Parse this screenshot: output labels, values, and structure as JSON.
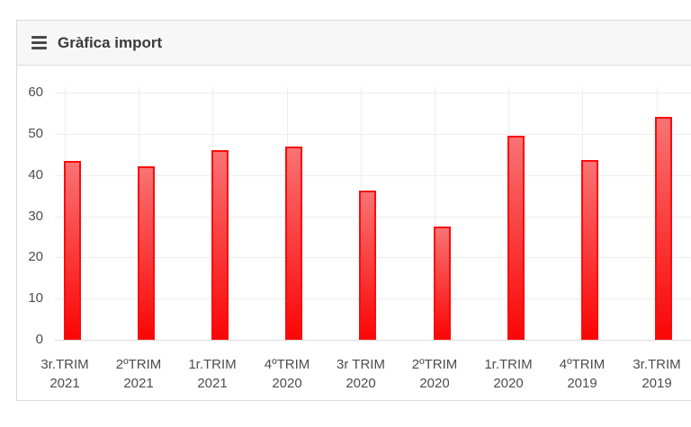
{
  "header": {
    "title": "Gràfica import"
  },
  "chart_data": {
    "type": "bar",
    "title": "Gràfica import",
    "categories": [
      "3r.TRIM 2021",
      "2ºTRIM 2021",
      "1r.TRIM 2021",
      "4ºTRIM 2020",
      "3r TRIM 2020",
      "2ºTRIM 2020",
      "1r.TRIM 2020",
      "4ºTRIM 2019",
      "3r.TRIM 2019"
    ],
    "category_lines": [
      [
        "3r.TRIM",
        "2021"
      ],
      [
        "2ºTRIM",
        "2021"
      ],
      [
        "1r.TRIM",
        "2021"
      ],
      [
        "4ºTRIM",
        "2020"
      ],
      [
        "3r TRIM",
        "2020"
      ],
      [
        "2ºTRIM",
        "2020"
      ],
      [
        "1r.TRIM",
        "2020"
      ],
      [
        "4ºTRIM",
        "2019"
      ],
      [
        "3r.TRIM",
        "2019"
      ]
    ],
    "values": [
      43.5,
      42.2,
      46.0,
      46.9,
      36.2,
      27.5,
      49.5,
      43.6,
      54.1
    ],
    "yticks": [
      0,
      10,
      20,
      30,
      40,
      50,
      60
    ],
    "ylim": [
      0,
      60
    ],
    "xlabel": "",
    "ylabel": "",
    "grid": true,
    "legend": "none",
    "colors": {
      "bar_fill_top": "#f97373",
      "bar_fill_bottom": "#fa0606",
      "bar_border": "#f90d0d",
      "grid_line": "#ededed",
      "axis_line": "#dcdcdc",
      "axis_text": "#4d4d4d"
    }
  }
}
